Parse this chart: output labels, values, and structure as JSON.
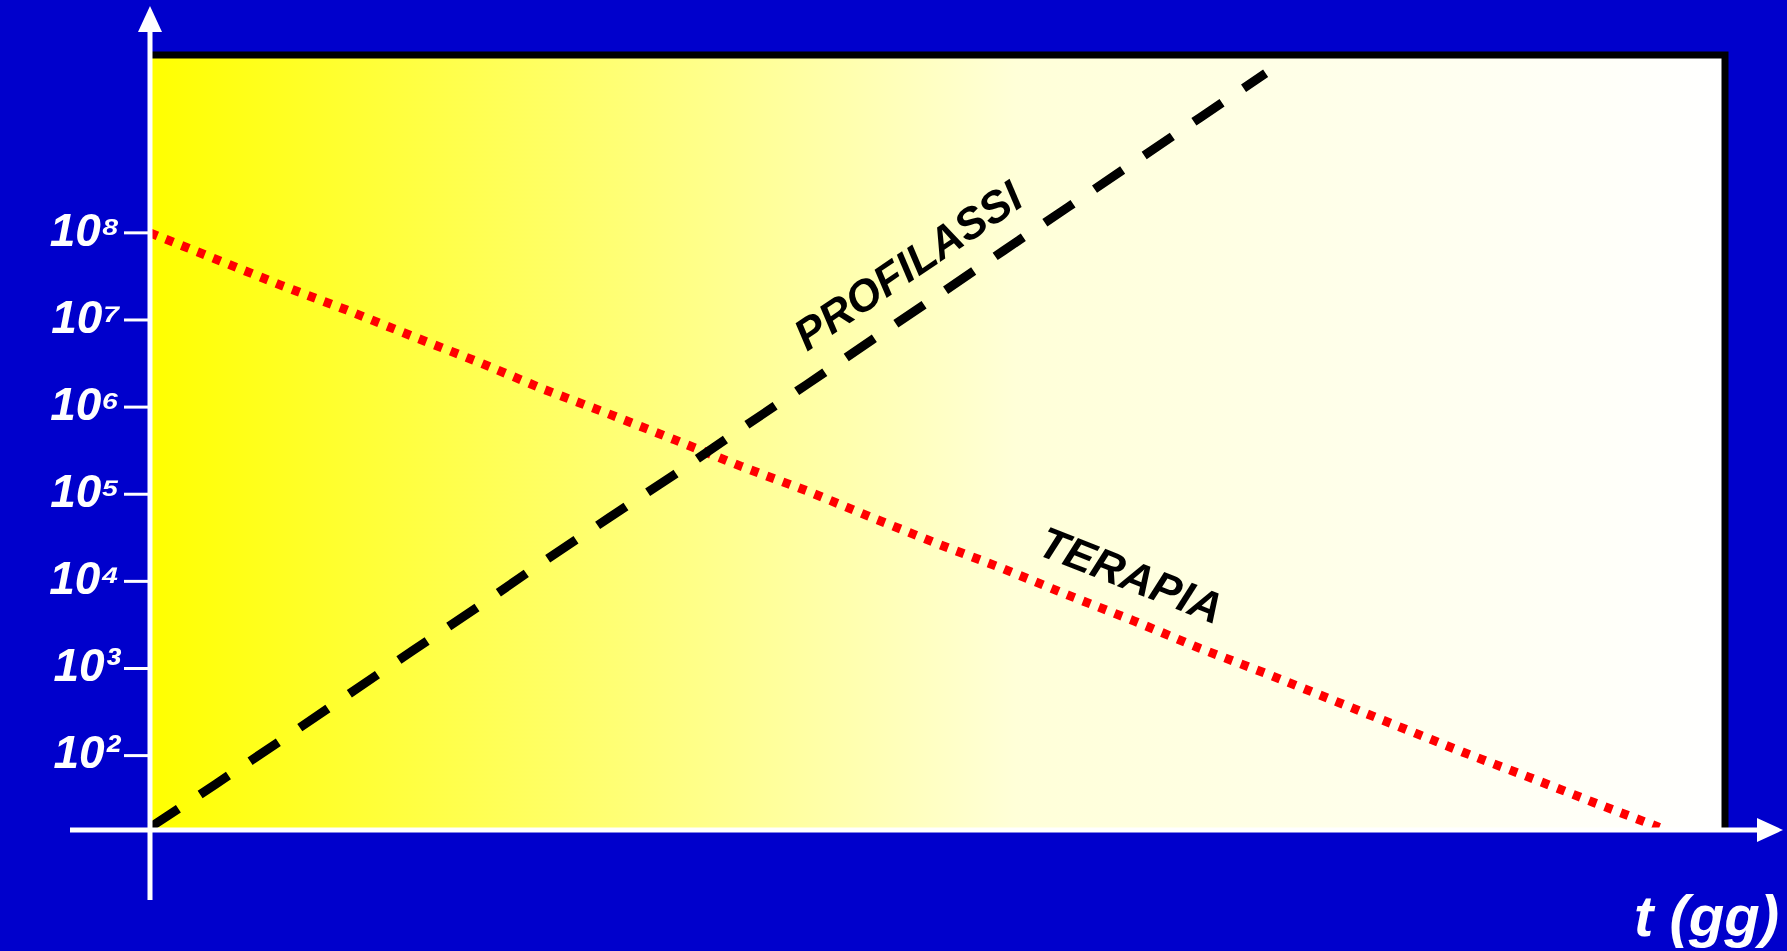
{
  "chart_data": {
    "type": "line",
    "xlabel": "t (gg)",
    "log": "y",
    "grid": false,
    "legend": false,
    "marker": "none",
    "categories": [
      null,
      null,
      null,
      null,
      null,
      null,
      null,
      null,
      null,
      null,
      null,
      null,
      null,
      null,
      null,
      null,
      null,
      null,
      null,
      null,
      null,
      null,
      null,
      null,
      null
    ],
    "ylim": [
      14,
      11000000000
    ],
    "yticks": [
      {
        "value": 100,
        "label": "10²"
      },
      {
        "value": 1000,
        "label": "10³"
      },
      {
        "value": 10000,
        "label": "10⁴"
      },
      {
        "value": 100000,
        "label": "10⁵"
      },
      {
        "value": 1000000,
        "label": "10⁶"
      },
      {
        "value": 10000000,
        "label": "10⁷"
      },
      {
        "value": 100000000,
        "label": "10⁸"
      }
    ],
    "series": [
      {
        "name": "PROFILASSI",
        "color": "#000000",
        "line_style": "dashed",
        "values": [
          15,
          47,
          150,
          490,
          1600,
          5100,
          17000,
          54000,
          170000,
          560000,
          1800000,
          5900000,
          19000000,
          62000000,
          200000000,
          650000000,
          2100000000,
          6800000000,
          null,
          null,
          null,
          null,
          null,
          null,
          null
        ]
      },
      {
        "name": "TERAPIA",
        "color": "#ff0000",
        "line_style": "dotted",
        "values": [
          100000000,
          50000000,
          25000000,
          13000000,
          6500000,
          3300000,
          1600000,
          830000,
          420000,
          210000,
          110000,
          54000,
          27000,
          14000,
          6900,
          3500,
          1700,
          880,
          440,
          220,
          110,
          57,
          29,
          15,
          null
        ]
      }
    ]
  }
}
